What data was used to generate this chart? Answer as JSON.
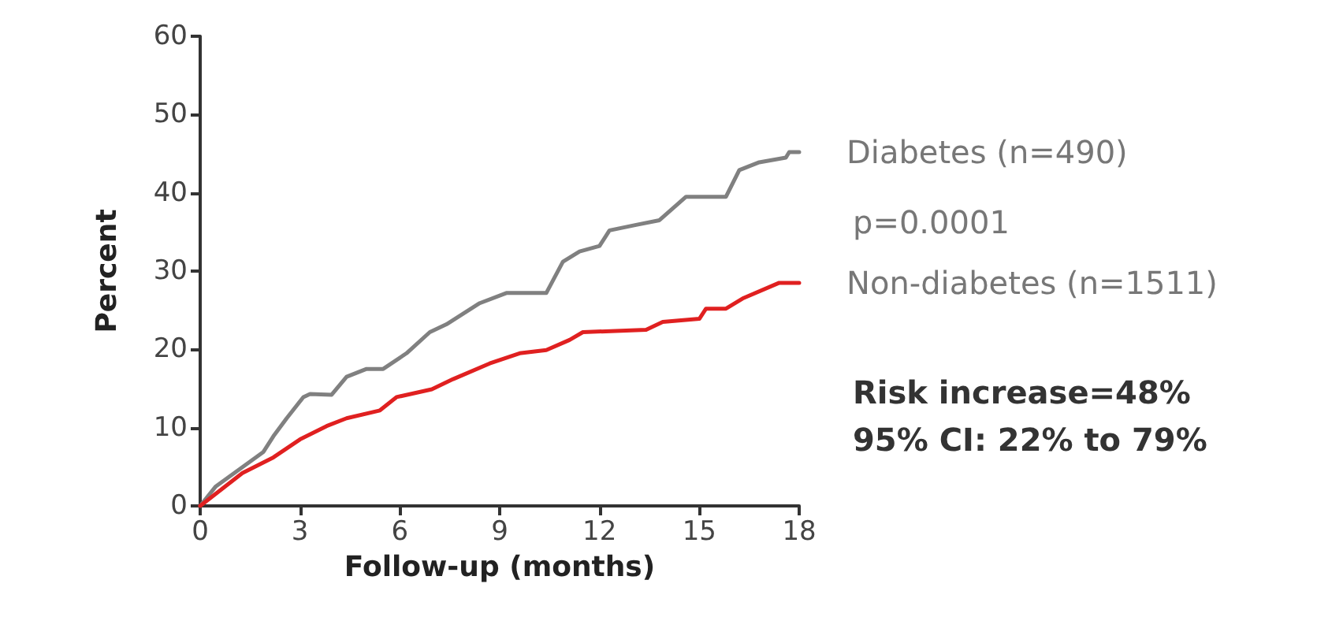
{
  "chart_data": {
    "type": "line",
    "xlabel": "Follow-up (months)",
    "ylabel": "Percent",
    "xlim": [
      0,
      18
    ],
    "xticks": [
      0,
      3,
      6,
      9,
      12,
      15,
      18
    ],
    "ylim": [
      0,
      60
    ],
    "yticks": [
      0,
      10,
      20,
      30,
      40,
      50,
      60
    ],
    "grid": false,
    "legend": false,
    "marker": "none",
    "line_style": "solid",
    "series": [
      {
        "name": "Diabetes (n=490)",
        "color": "#808080",
        "x": [
          0,
          0.47,
          1.9,
          2.2,
          2.6,
          3.1,
          3.3,
          3.95,
          4.4,
          5.0,
          5.5,
          6.2,
          6.9,
          7.4,
          8.4,
          9.2,
          10.4,
          10.9,
          11.4,
          12.0,
          12.3,
          13.1,
          13.8,
          14.6,
          15.8,
          16.2,
          16.8,
          17.6,
          17.7,
          18
        ],
        "values": [
          0,
          2.5,
          6.9,
          8.9,
          11.2,
          13.9,
          14.3,
          14.2,
          16.5,
          17.5,
          17.5,
          19.5,
          22.2,
          23.2,
          25.9,
          27.2,
          27.2,
          31.2,
          32.5,
          33.2,
          35.2,
          35.9,
          36.5,
          39.5,
          39.5,
          42.9,
          43.9,
          44.5,
          45.2,
          45.2
        ]
      },
      {
        "name": "Non-diabetes (n=1511)",
        "color": "#e02020",
        "x": [
          0,
          1.27,
          2.2,
          3.0,
          3.8,
          4.4,
          5.4,
          5.9,
          6.96,
          7.6,
          8.7,
          9.6,
          10.4,
          11.1,
          11.5,
          13.4,
          13.9,
          15.0,
          15.2,
          15.8,
          16.3,
          17.4,
          18
        ],
        "values": [
          0,
          4.2,
          6.2,
          8.5,
          10.2,
          11.2,
          12.2,
          13.9,
          14.9,
          16.2,
          18.2,
          19.5,
          19.9,
          21.2,
          22.2,
          22.5,
          23.5,
          23.9,
          25.2,
          25.2,
          26.5,
          28.5,
          28.5
        ]
      }
    ],
    "annotations": [
      "p=0.0001",
      "Risk increase=48%",
      "95% CI: 22% to 79%"
    ]
  }
}
